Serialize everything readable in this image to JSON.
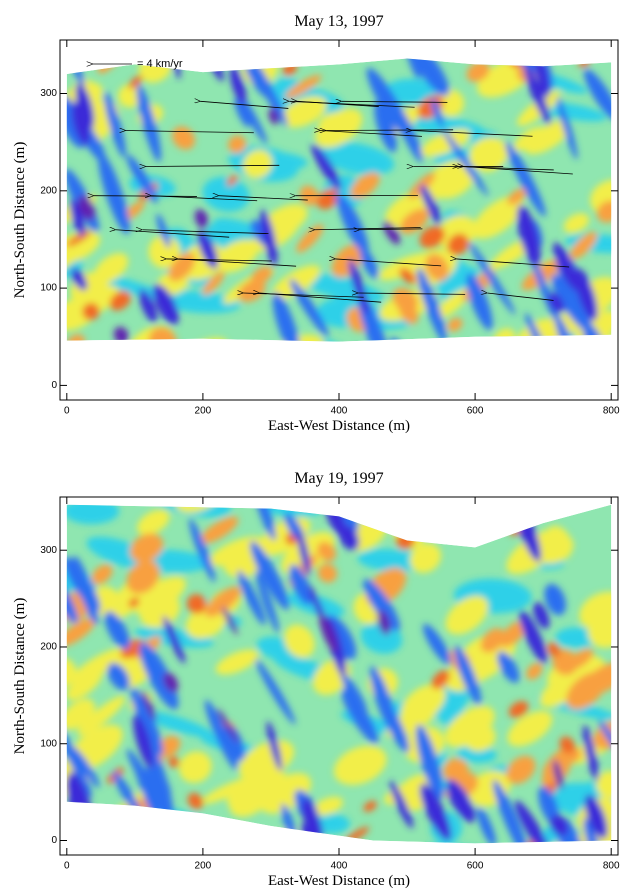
{
  "chart_data": [
    {
      "type": "heatmap",
      "title": "May 13, 1997",
      "xlabel": "East-West Distance (m)",
      "ylabel": "North-South  Distance (m)",
      "xlim": [
        -10,
        810
      ],
      "ylim": [
        -15,
        355
      ],
      "xticks": [
        0,
        200,
        400,
        600,
        800
      ],
      "yticks": [
        0,
        100,
        200,
        300
      ],
      "annotation": "= 4 km/yr",
      "vectors": true
    },
    {
      "type": "heatmap",
      "title": "May 19, 1997",
      "xlabel": "East-West Distance (m)",
      "ylabel": "North-South  Distance (m)",
      "xlim": [
        -10,
        810
      ],
      "ylim": [
        -15,
        355
      ],
      "xticks": [
        0,
        200,
        400,
        600,
        800
      ],
      "yticks": [
        0,
        100,
        200,
        300
      ],
      "vectors": false
    }
  ]
}
